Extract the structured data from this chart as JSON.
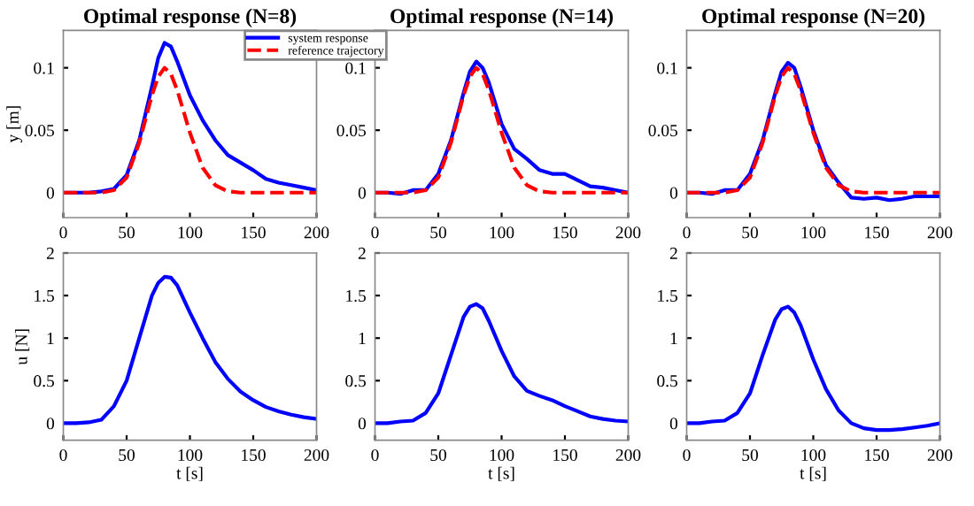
{
  "chart_data": [
    {
      "type": "line",
      "title": "Optimal response (N=8)",
      "ylabel": "y [m]",
      "xlim": [
        0,
        200
      ],
      "xticks": [
        0,
        50,
        100,
        150,
        200
      ],
      "ylim": [
        -0.02,
        0.13
      ],
      "yticks": [
        0,
        0.05,
        0.1
      ],
      "grid": false,
      "legend": "top right",
      "x": [
        0,
        10,
        20,
        30,
        40,
        50,
        60,
        70,
        75,
        80,
        85,
        90,
        100,
        110,
        120,
        130,
        140,
        150,
        160,
        170,
        180,
        190,
        200
      ],
      "series": [
        {
          "name": "system response",
          "color": "#0000ff",
          "line_style": "solid",
          "values": [
            0,
            0,
            0,
            0.001,
            0.003,
            0.014,
            0.042,
            0.085,
            0.108,
            0.12,
            0.117,
            0.105,
            0.078,
            0.058,
            0.042,
            0.03,
            0.024,
            0.018,
            0.011,
            0.008,
            0.006,
            0.004,
            0.002
          ]
        },
        {
          "name": "reference trajectory",
          "color": "#ff0000",
          "line_style": "dashed",
          "values": [
            0,
            0,
            0,
            0,
            0.002,
            0.012,
            0.04,
            0.078,
            0.093,
            0.1,
            0.095,
            0.082,
            0.048,
            0.02,
            0.006,
            0.001,
            0,
            0,
            0,
            0,
            0,
            0,
            0
          ]
        }
      ]
    },
    {
      "type": "line",
      "title": "Optimal response (N=14)",
      "xlim": [
        0,
        200
      ],
      "xticks": [
        0,
        50,
        100,
        150,
        200
      ],
      "ylim": [
        -0.02,
        0.13
      ],
      "yticks": [
        0,
        0.05,
        0.1
      ],
      "grid": false,
      "legend": false,
      "x": [
        0,
        10,
        20,
        30,
        40,
        50,
        60,
        70,
        75,
        80,
        85,
        90,
        100,
        110,
        120,
        130,
        140,
        150,
        160,
        170,
        180,
        190,
        200
      ],
      "series": [
        {
          "color": "#0000ff",
          "line_style": "solid",
          "values": [
            0,
            0,
            -0.001,
            0.002,
            0.002,
            0.015,
            0.042,
            0.08,
            0.097,
            0.105,
            0.1,
            0.088,
            0.055,
            0.035,
            0.027,
            0.018,
            0.015,
            0.015,
            0.01,
            0.005,
            0.004,
            0.002,
            0
          ]
        },
        {
          "color": "#ff0000",
          "line_style": "dashed",
          "values": [
            0,
            0,
            0,
            0,
            0.002,
            0.012,
            0.04,
            0.078,
            0.093,
            0.1,
            0.095,
            0.082,
            0.048,
            0.02,
            0.006,
            0.001,
            0,
            0,
            0,
            0,
            0,
            0,
            0
          ]
        }
      ]
    },
    {
      "type": "line",
      "title": "Optimal response (N=20)",
      "xlim": [
        0,
        200
      ],
      "xticks": [
        0,
        50,
        100,
        150,
        200
      ],
      "ylim": [
        -0.02,
        0.13
      ],
      "yticks": [
        0,
        0.05,
        0.1
      ],
      "grid": false,
      "legend": false,
      "x": [
        0,
        10,
        20,
        30,
        40,
        50,
        60,
        70,
        75,
        80,
        85,
        90,
        100,
        110,
        120,
        130,
        140,
        150,
        160,
        170,
        180,
        190,
        200
      ],
      "series": [
        {
          "color": "#0000ff",
          "line_style": "solid",
          "values": [
            0,
            0,
            -0.001,
            0.002,
            0.002,
            0.015,
            0.042,
            0.08,
            0.097,
            0.104,
            0.1,
            0.085,
            0.05,
            0.022,
            0.008,
            -0.004,
            -0.005,
            -0.004,
            -0.006,
            -0.005,
            -0.003,
            -0.003,
            -0.003
          ]
        },
        {
          "color": "#ff0000",
          "line_style": "dashed",
          "values": [
            0,
            0,
            0,
            0,
            0.002,
            0.012,
            0.04,
            0.078,
            0.093,
            0.1,
            0.095,
            0.082,
            0.048,
            0.02,
            0.006,
            0.001,
            0,
            0,
            0,
            0,
            0,
            0,
            0
          ]
        }
      ]
    },
    {
      "type": "line",
      "xlabel": "t [s]",
      "ylabel": "u [N]",
      "xlim": [
        0,
        200
      ],
      "xticks": [
        0,
        50,
        100,
        150,
        200
      ],
      "ylim": [
        -0.2,
        2
      ],
      "yticks": [
        0,
        0.5,
        1,
        1.5,
        2
      ],
      "grid": false,
      "legend": false,
      "x": [
        0,
        10,
        20,
        30,
        40,
        50,
        60,
        70,
        75,
        80,
        85,
        90,
        100,
        110,
        120,
        130,
        140,
        150,
        160,
        170,
        180,
        190,
        200
      ],
      "series": [
        {
          "color": "#0000ff",
          "line_style": "solid",
          "values": [
            0,
            0,
            0.01,
            0.04,
            0.2,
            0.5,
            1.0,
            1.5,
            1.65,
            1.72,
            1.71,
            1.62,
            1.3,
            1.0,
            0.72,
            0.52,
            0.37,
            0.27,
            0.19,
            0.14,
            0.1,
            0.07,
            0.05
          ]
        }
      ]
    },
    {
      "type": "line",
      "xlabel": "t [s]",
      "xlim": [
        0,
        200
      ],
      "xticks": [
        0,
        50,
        100,
        150,
        200
      ],
      "ylim": [
        -0.2,
        2
      ],
      "yticks": [
        0,
        0.5,
        1,
        1.5,
        2
      ],
      "grid": false,
      "legend": false,
      "x": [
        0,
        10,
        20,
        30,
        40,
        50,
        60,
        70,
        75,
        80,
        85,
        90,
        100,
        110,
        120,
        130,
        140,
        150,
        160,
        170,
        180,
        190,
        200
      ],
      "series": [
        {
          "color": "#0000ff",
          "line_style": "solid",
          "values": [
            0,
            0,
            0.02,
            0.03,
            0.12,
            0.35,
            0.8,
            1.25,
            1.37,
            1.4,
            1.35,
            1.2,
            0.85,
            0.55,
            0.38,
            0.32,
            0.27,
            0.2,
            0.14,
            0.08,
            0.05,
            0.03,
            0.02
          ]
        }
      ]
    },
    {
      "type": "line",
      "xlabel": "t [s]",
      "xlim": [
        0,
        200
      ],
      "xticks": [
        0,
        50,
        100,
        150,
        200
      ],
      "ylim": [
        -0.2,
        2
      ],
      "yticks": [
        0,
        0.5,
        1,
        1.5,
        2
      ],
      "grid": false,
      "legend": false,
      "x": [
        0,
        10,
        20,
        30,
        40,
        50,
        60,
        70,
        75,
        80,
        85,
        90,
        100,
        110,
        120,
        130,
        140,
        150,
        160,
        170,
        180,
        190,
        200
      ],
      "series": [
        {
          "color": "#0000ff",
          "line_style": "solid",
          "values": [
            0,
            0,
            0.02,
            0.03,
            0.12,
            0.35,
            0.8,
            1.22,
            1.34,
            1.37,
            1.3,
            1.15,
            0.75,
            0.4,
            0.15,
            0.0,
            -0.06,
            -0.08,
            -0.08,
            -0.07,
            -0.05,
            -0.03,
            0.0
          ]
        }
      ]
    }
  ]
}
